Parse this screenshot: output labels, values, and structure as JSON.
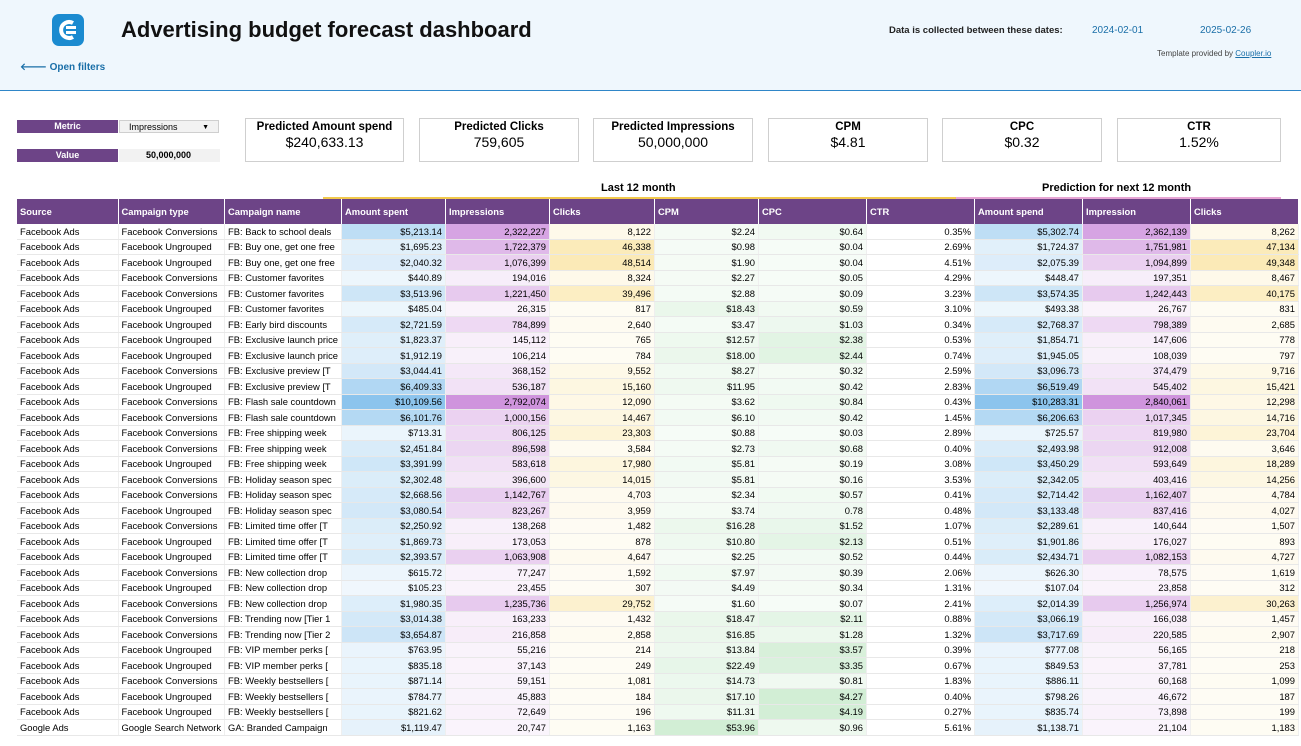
{
  "header": {
    "title": "Advertising budget forecast dashboard",
    "open_filters": "🡐 Open filters",
    "date_label": "Data is collected between these dates:",
    "date_start": "2024-02-01",
    "date_end": "2025-02-26",
    "template_text": "Template provided by",
    "template_link": "Coupler.io",
    "logo_icon": "coupler-logo-icon"
  },
  "controls": {
    "metric_label": "Metric",
    "metric_value": "Impressions",
    "value_label": "Value",
    "value_value": "50,000,000"
  },
  "kpis": [
    {
      "title": "Predicted Amount spend",
      "value": "$240,633.13"
    },
    {
      "title": "Predicted Clicks",
      "value": "759,605"
    },
    {
      "title": "Predicted Impressions",
      "value": "50,000,000"
    },
    {
      "title": "CPM",
      "value": "$4.81"
    },
    {
      "title": "CPC",
      "value": "$0.32"
    },
    {
      "title": "CTR",
      "value": "1.52%"
    }
  ],
  "groups": {
    "last": "Last 12 month",
    "prediction": "Prediction for next 12 month"
  },
  "colors": {
    "header_purple": "#6d4487",
    "accent_blue": "#1a6fa8",
    "last_line": "#f2c94c",
    "pred_line": "#e7a4d4"
  },
  "columns": [
    "Source",
    "Campaign type",
    "Campaign name",
    "Amount spent",
    "Impressions",
    "Clicks",
    "CPM",
    "CPC",
    "CTR",
    "Amount spend",
    "Impression",
    "Clicks"
  ],
  "rows": [
    [
      "Facebook Ads",
      "Facebook Conversions",
      "FB: Back to school deals",
      "$5,213.14",
      "2,322,227",
      "8,122",
      "$2.24",
      "$0.64",
      "0.35%",
      "$5,302.74",
      "2,362,139",
      "8,262"
    ],
    [
      "Facebook Ads",
      "Facebook Ungrouped",
      "FB: Buy one, get one free",
      "$1,695.23",
      "1,722,379",
      "46,338",
      "$0.98",
      "$0.04",
      "2.69%",
      "$1,724.37",
      "1,751,981",
      "47,134"
    ],
    [
      "Facebook Ads",
      "Facebook Ungrouped",
      "FB: Buy one, get one free",
      "$2,040.32",
      "1,076,399",
      "48,514",
      "$1.90",
      "$0.04",
      "4.51%",
      "$2,075.39",
      "1,094,899",
      "49,348"
    ],
    [
      "Facebook Ads",
      "Facebook Conversions",
      "FB: Customer favorites",
      "$440.89",
      "194,016",
      "8,324",
      "$2.27",
      "$0.05",
      "4.29%",
      "$448.47",
      "197,351",
      "8,467"
    ],
    [
      "Facebook Ads",
      "Facebook Conversions",
      "FB: Customer favorites",
      "$3,513.96",
      "1,221,450",
      "39,496",
      "$2.88",
      "$0.09",
      "3.23%",
      "$3,574.35",
      "1,242,443",
      "40,175"
    ],
    [
      "Facebook Ads",
      "Facebook Ungrouped",
      "FB: Customer favorites",
      "$485.04",
      "26,315",
      "817",
      "$18.43",
      "$0.59",
      "3.10%",
      "$493.38",
      "26,767",
      "831"
    ],
    [
      "Facebook Ads",
      "Facebook Ungrouped",
      "FB: Early bird discounts",
      "$2,721.59",
      "784,899",
      "2,640",
      "$3.47",
      "$1.03",
      "0.34%",
      "$2,768.37",
      "798,389",
      "2,685"
    ],
    [
      "Facebook Ads",
      "Facebook Ungrouped",
      "FB: Exclusive launch price",
      "$1,823.37",
      "145,112",
      "765",
      "$12.57",
      "$2.38",
      "0.53%",
      "$1,854.71",
      "147,606",
      "778"
    ],
    [
      "Facebook Ads",
      "Facebook Ungrouped",
      "FB: Exclusive launch price",
      "$1,912.19",
      "106,214",
      "784",
      "$18.00",
      "$2.44",
      "0.74%",
      "$1,945.05",
      "108,039",
      "797"
    ],
    [
      "Facebook Ads",
      "Facebook Conversions",
      "FB: Exclusive preview [T",
      "$3,044.41",
      "368,152",
      "9,552",
      "$8.27",
      "$0.32",
      "2.59%",
      "$3,096.73",
      "374,479",
      "9,716"
    ],
    [
      "Facebook Ads",
      "Facebook Ungrouped",
      "FB: Exclusive preview [T",
      "$6,409.33",
      "536,187",
      "15,160",
      "$11.95",
      "$0.42",
      "2.83%",
      "$6,519.49",
      "545,402",
      "15,421"
    ],
    [
      "Facebook Ads",
      "Facebook Conversions",
      "FB: Flash sale countdown",
      "$10,109.56",
      "2,792,074",
      "12,090",
      "$3.62",
      "$0.84",
      "0.43%",
      "$10,283.31",
      "2,840,061",
      "12,298"
    ],
    [
      "Facebook Ads",
      "Facebook Conversions",
      "FB: Flash sale countdown",
      "$6,101.76",
      "1,000,156",
      "14,467",
      "$6.10",
      "$0.42",
      "1.45%",
      "$6,206.63",
      "1,017,345",
      "14,716"
    ],
    [
      "Facebook Ads",
      "Facebook Conversions",
      "FB: Free shipping week",
      "$713.31",
      "806,125",
      "23,303",
      "$0.88",
      "$0.03",
      "2.89%",
      "$725.57",
      "819,980",
      "23,704"
    ],
    [
      "Facebook Ads",
      "Facebook Conversions",
      "FB: Free shipping week",
      "$2,451.84",
      "896,598",
      "3,584",
      "$2.73",
      "$0.68",
      "0.40%",
      "$2,493.98",
      "912,008",
      "3,646"
    ],
    [
      "Facebook Ads",
      "Facebook Ungrouped",
      "FB: Free shipping week",
      "$3,391.99",
      "583,618",
      "17,980",
      "$5.81",
      "$0.19",
      "3.08%",
      "$3,450.29",
      "593,649",
      "18,289"
    ],
    [
      "Facebook Ads",
      "Facebook Conversions",
      "FB: Holiday season spec",
      "$2,302.48",
      "396,600",
      "14,015",
      "$5.81",
      "$0.16",
      "3.53%",
      "$2,342.05",
      "403,416",
      "14,256"
    ],
    [
      "Facebook Ads",
      "Facebook Conversions",
      "FB: Holiday season spec",
      "$2,668.56",
      "1,142,767",
      "4,703",
      "$2.34",
      "$0.57",
      "0.41%",
      "$2,714.42",
      "1,162,407",
      "4,784"
    ],
    [
      "Facebook Ads",
      "Facebook Ungrouped",
      "FB: Holiday season spec",
      "$3,080.54",
      "823,267",
      "3,959",
      "$3.74",
      "0.78",
      "0.48%",
      "$3,133.48",
      "837,416",
      "4,027"
    ],
    [
      "Facebook Ads",
      "Facebook Conversions",
      "FB: Limited time offer [T",
      "$2,250.92",
      "138,268",
      "1,482",
      "$16.28",
      "$1.52",
      "1.07%",
      "$2,289.61",
      "140,644",
      "1,507"
    ],
    [
      "Facebook Ads",
      "Facebook Ungrouped",
      "FB: Limited time offer [T",
      "$1,869.73",
      "173,053",
      "878",
      "$10.80",
      "$2.13",
      "0.51%",
      "$1,901.86",
      "176,027",
      "893"
    ],
    [
      "Facebook Ads",
      "Facebook Ungrouped",
      "FB: Limited time offer [T",
      "$2,393.57",
      "1,063,908",
      "4,647",
      "$2.25",
      "$0.52",
      "0.44%",
      "$2,434.71",
      "1,082,153",
      "4,727"
    ],
    [
      "Facebook Ads",
      "Facebook Conversions",
      "FB: New collection drop",
      "$615.72",
      "77,247",
      "1,592",
      "$7.97",
      "$0.39",
      "2.06%",
      "$626.30",
      "78,575",
      "1,619"
    ],
    [
      "Facebook Ads",
      "Facebook Ungrouped",
      "FB: New collection drop",
      "$105.23",
      "23,455",
      "307",
      "$4.49",
      "$0.34",
      "1.31%",
      "$107.04",
      "23,858",
      "312"
    ],
    [
      "Facebook Ads",
      "Facebook Conversions",
      "FB: New collection drop",
      "$1,980.35",
      "1,235,736",
      "29,752",
      "$1.60",
      "$0.07",
      "2.41%",
      "$2,014.39",
      "1,256,974",
      "30,263"
    ],
    [
      "Facebook Ads",
      "Facebook Conversions",
      "FB: Trending now [Tier 1",
      "$3,014.38",
      "163,233",
      "1,432",
      "$18.47",
      "$2.11",
      "0.88%",
      "$3,066.19",
      "166,038",
      "1,457"
    ],
    [
      "Facebook Ads",
      "Facebook Conversions",
      "FB: Trending now [Tier 2",
      "$3,654.87",
      "216,858",
      "2,858",
      "$16.85",
      "$1.28",
      "1.32%",
      "$3,717.69",
      "220,585",
      "2,907"
    ],
    [
      "Facebook Ads",
      "Facebook Ungrouped",
      "FB: VIP member perks [",
      "$763.95",
      "55,216",
      "214",
      "$13.84",
      "$3.57",
      "0.39%",
      "$777.08",
      "56,165",
      "218"
    ],
    [
      "Facebook Ads",
      "Facebook Ungrouped",
      "FB: VIP member perks [",
      "$835.18",
      "37,143",
      "249",
      "$22.49",
      "$3.35",
      "0.67%",
      "$849.53",
      "37,781",
      "253"
    ],
    [
      "Facebook Ads",
      "Facebook Conversions",
      "FB: Weekly bestsellers [",
      "$871.14",
      "59,151",
      "1,081",
      "$14.73",
      "$0.81",
      "1.83%",
      "$886.11",
      "60,168",
      "1,099"
    ],
    [
      "Facebook Ads",
      "Facebook Ungrouped",
      "FB: Weekly bestsellers [",
      "$784.77",
      "45,883",
      "184",
      "$17.10",
      "$4.27",
      "0.40%",
      "$798.26",
      "46,672",
      "187"
    ],
    [
      "Facebook Ads",
      "Facebook Ungrouped",
      "FB: Weekly bestsellers [",
      "$821.62",
      "72,649",
      "196",
      "$11.31",
      "$4.19",
      "0.27%",
      "$835.74",
      "73,898",
      "199"
    ],
    [
      "Google Ads",
      "Google Search Network",
      "GA: Branded Campaign",
      "$1,119.47",
      "20,747",
      "1,163",
      "$53.96",
      "$0.96",
      "5.61%",
      "$1,138.71",
      "21,104",
      "1,183"
    ]
  ]
}
